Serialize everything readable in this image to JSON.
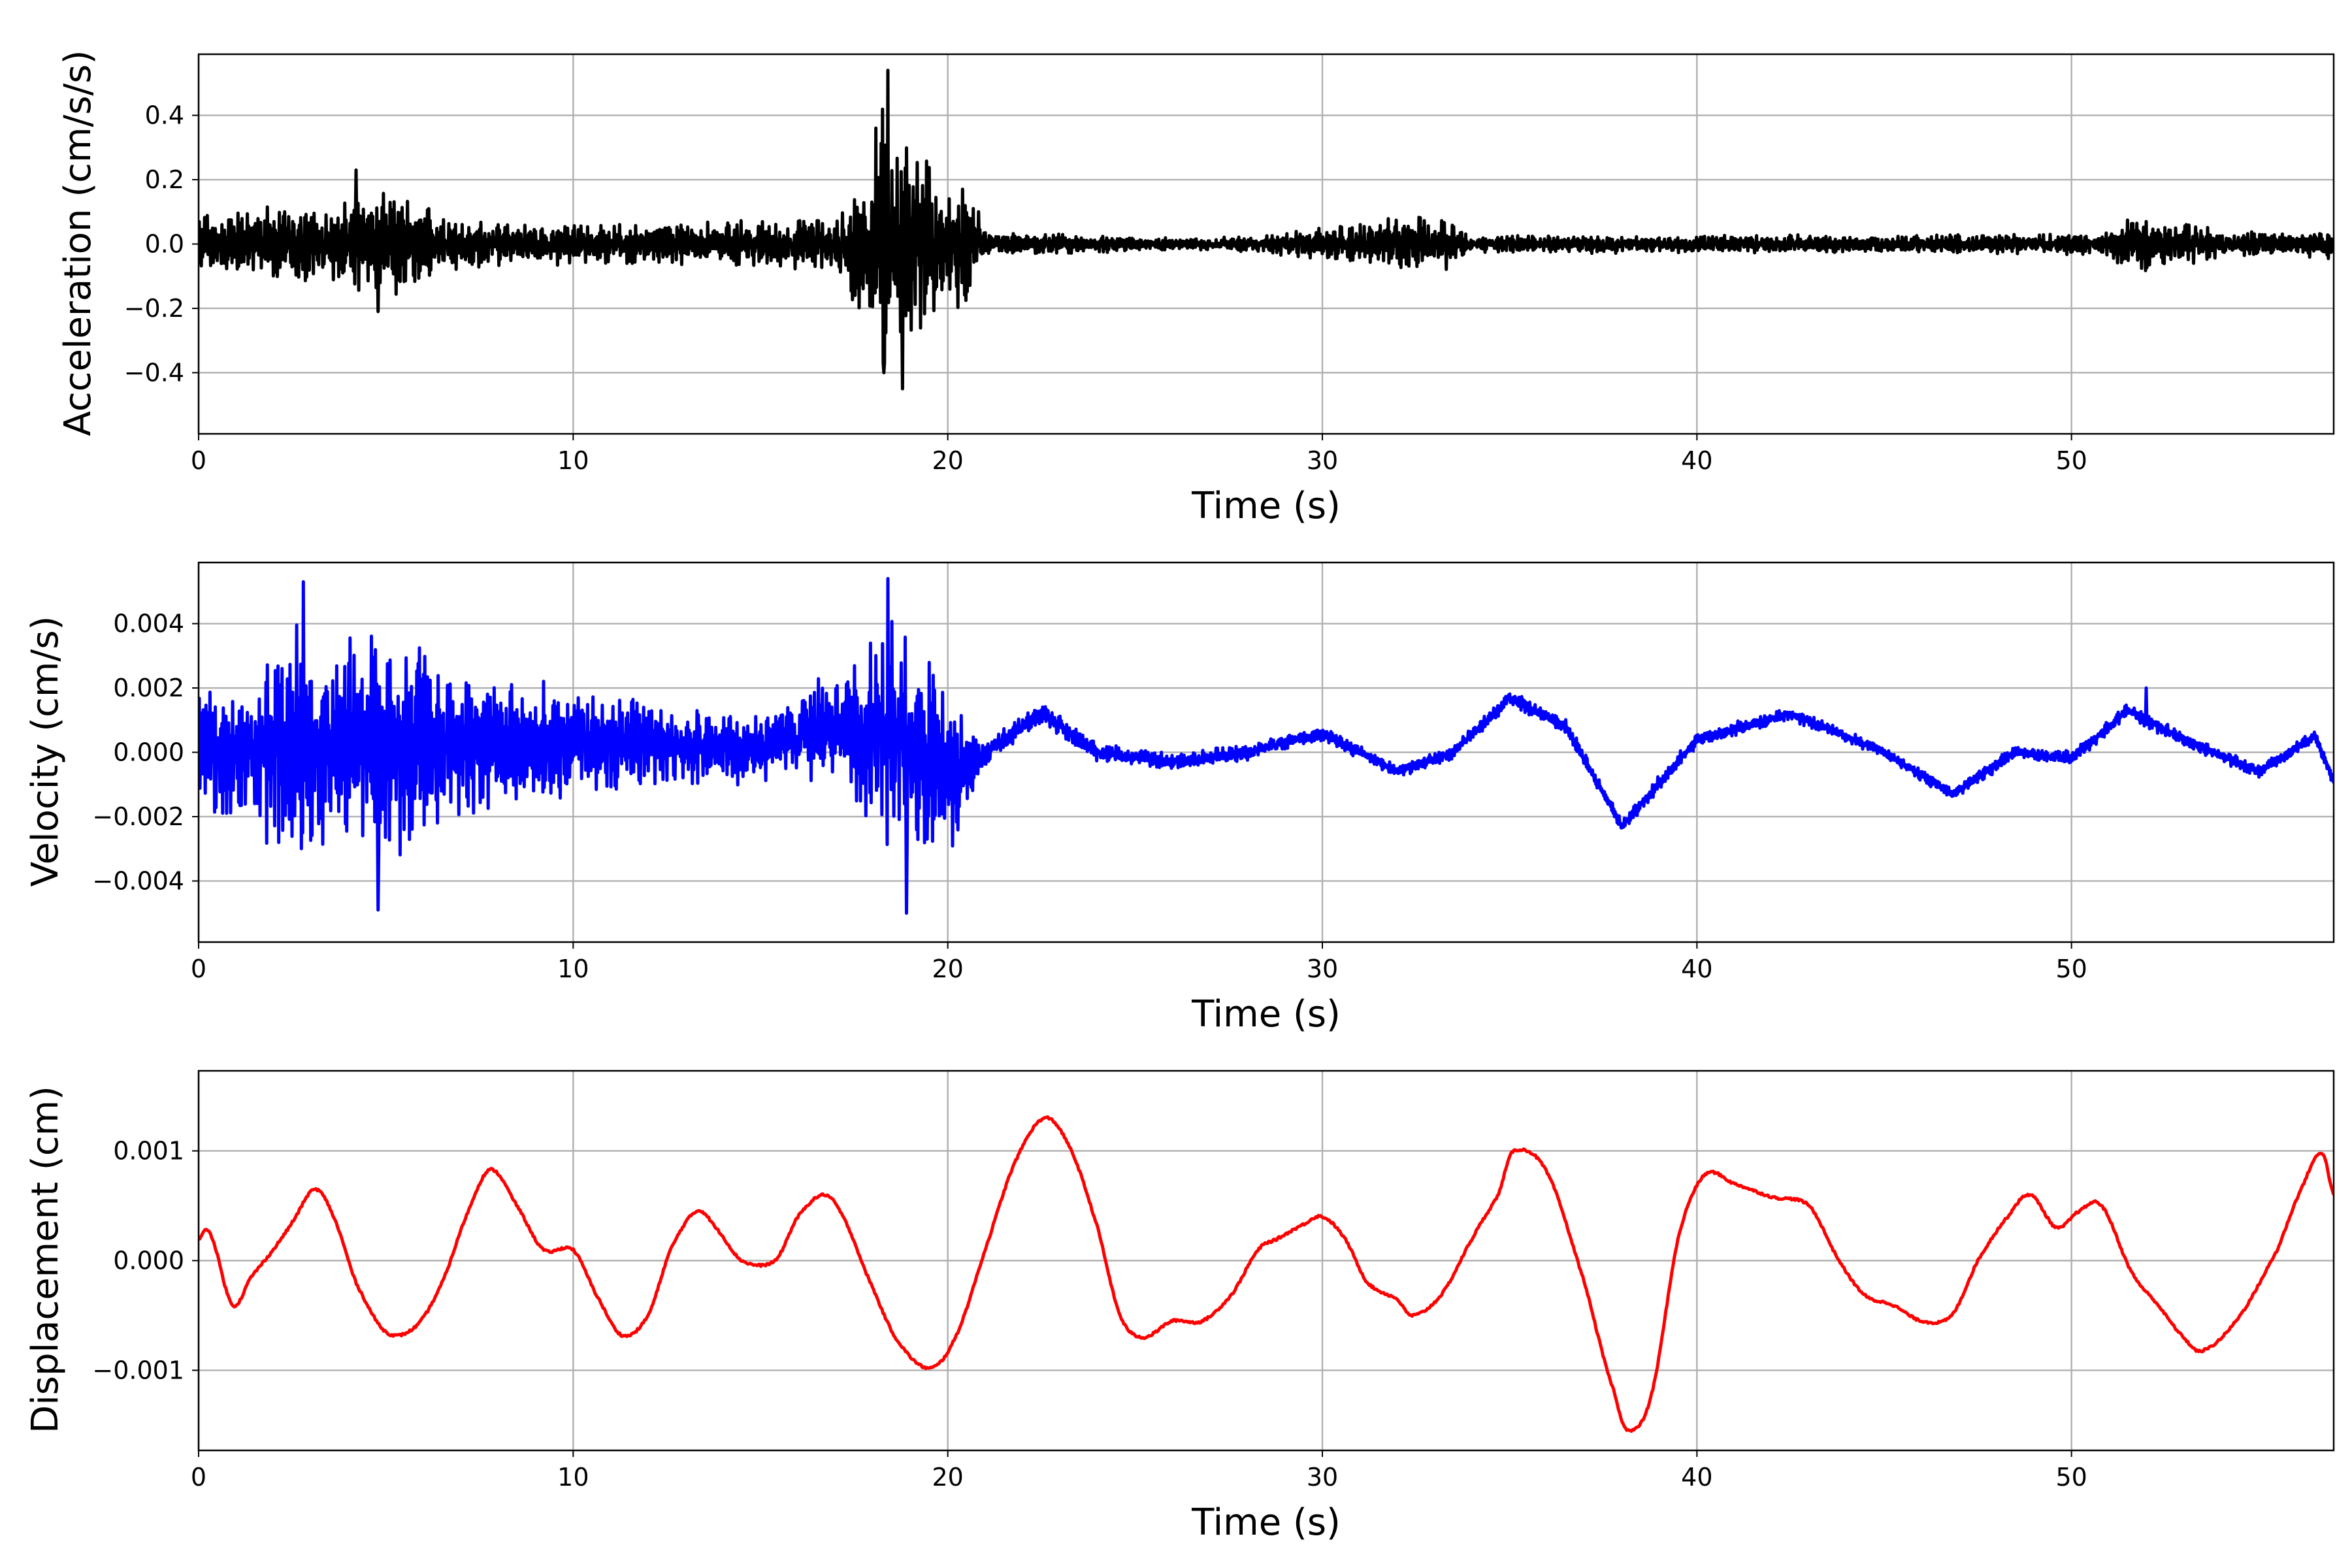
{
  "chart_data": [
    {
      "type": "line",
      "xlabel": "Time (s)",
      "ylabel": "Acceleration (cm/s/s)",
      "xlim": [
        0,
        57
      ],
      "ylim": [
        -0.59,
        0.59
      ],
      "xticks": [
        0,
        10,
        20,
        30,
        40,
        50
      ],
      "xtick_labels": [
        "0",
        "10",
        "20",
        "30",
        "40",
        "50"
      ],
      "yticks": [
        -0.4,
        -0.2,
        0.0,
        0.2,
        0.4
      ],
      "ytick_labels": [
        "−0.4",
        "−0.2",
        "0.0",
        "0.2",
        "0.4"
      ],
      "grid": true,
      "series": [
        {
          "color": "#000000",
          "envelope": {
            "t": [
              0,
              2,
              4,
              4.3,
              5,
              8,
              12,
              15,
              17,
              17.9,
              18.3,
              18.6,
              19,
              20,
              20.5,
              21,
              25,
              27,
              29,
              31,
              32.5,
              33.5,
              34,
              40,
              45,
              51,
              51.5,
              53.5,
              54,
              57
            ],
            "amp": [
              0.1,
              0.13,
              0.14,
              0.2,
              0.17,
              0.07,
              0.07,
              0.08,
              0.09,
              0.32,
              0.52,
              0.33,
              0.36,
              0.2,
              0.22,
              0.04,
              0.025,
              0.02,
              0.04,
              0.07,
              0.1,
              0.08,
              0.03,
              0.03,
              0.03,
              0.04,
              0.09,
              0.07,
              0.04,
              0.05
            ]
          },
          "extremes": [
            {
              "t": 18.4,
              "v": 0.54
            },
            {
              "t": 18.8,
              "v": -0.45
            },
            {
              "t": 18.3,
              "v": -0.4
            },
            {
              "t": 4.2,
              "v": 0.23
            },
            {
              "t": 4.8,
              "v": -0.21
            }
          ]
        }
      ]
    },
    {
      "type": "line",
      "xlabel": "Time (s)",
      "ylabel": "Velocity (cm/s)",
      "xlim": [
        0,
        57
      ],
      "ylim": [
        -0.0059,
        0.0059
      ],
      "xticks": [
        0,
        10,
        20,
        30,
        40,
        50
      ],
      "xtick_labels": [
        "0",
        "10",
        "20",
        "30",
        "40",
        "50"
      ],
      "yticks": [
        -0.004,
        -0.002,
        0.0,
        0.002,
        0.004
      ],
      "ytick_labels": [
        "−0.004",
        "−0.002",
        "0.000",
        "0.002",
        "0.004"
      ],
      "grid": true,
      "series": [
        {
          "color": "#0000ff",
          "trend": {
            "t": [
              0,
              3,
              6,
              9,
              12,
              15,
              17,
              18.5,
              20,
              21,
              22.5,
              24,
              26,
              28,
              30,
              32,
              33.5,
              35,
              36.5,
              38,
              40,
              42.5,
              45,
              46.8,
              48.5,
              50,
              51.5,
              53,
              55,
              56.5,
              57
            ],
            "v": [
              0,
              0.0002,
              0.0003,
              0.0002,
              0.0003,
              0.0001,
              0.0008,
              0.0005,
              -0.0007,
              0.0,
              0.0012,
              0.0,
              -0.0003,
              0.0,
              0.0006,
              -0.0006,
              0.0,
              0.0017,
              0.0008,
              -0.0023,
              0.0004,
              0.0012,
              0.0,
              -0.0013,
              0.0,
              -0.0002,
              0.0013,
              0.0004,
              -0.0006,
              0.0005,
              -0.0009
            ]
          },
          "envelope": {
            "t": [
              0,
              2.5,
              5,
              7.5,
              10,
              13,
              16,
              17.5,
              18.5,
              19,
              20,
              20.5,
              21,
              25,
              30,
              35,
              40,
              45,
              50,
              57
            ],
            "amp": [
              0.002,
              0.004,
              0.004,
              0.0025,
              0.0018,
              0.0013,
              0.0012,
              0.0025,
              0.0045,
              0.004,
              0.0028,
              0.0018,
              0.0004,
              0.0003,
              0.00025,
              0.00025,
              0.00025,
              0.0002,
              0.00025,
              0.0002
            ]
          },
          "extremes": [
            {
              "t": 18.4,
              "v": 0.0054
            },
            {
              "t": 18.4,
              "v": -0.0052
            },
            {
              "t": 2.8,
              "v": 0.0053
            },
            {
              "t": 4.8,
              "v": -0.0049
            },
            {
              "t": 18.9,
              "v": -0.005
            },
            {
              "t": 52,
              "v": 0.002
            }
          ]
        }
      ]
    },
    {
      "type": "line",
      "xlabel": "Time (s)",
      "ylabel": "Displacement (cm)",
      "xlim": [
        0,
        57
      ],
      "ylim": [
        -0.00173,
        0.00173
      ],
      "xticks": [
        0,
        10,
        20,
        30,
        40,
        50
      ],
      "xtick_labels": [
        "0",
        "10",
        "20",
        "30",
        "40",
        "50"
      ],
      "yticks": [
        -0.001,
        0.0,
        0.001
      ],
      "ytick_labels": [
        "−0.001",
        "0.000",
        "0.001"
      ],
      "grid": true,
      "series": [
        {
          "color": "#ff0000",
          "x": [
            0,
            0.3,
            0.9,
            1.4,
            2.0,
            2.5,
            3.1,
            3.6,
            4.2,
            5.0,
            5.8,
            6.5,
            7.2,
            7.8,
            8.5,
            9.2,
            10.0,
            10.6,
            11.3,
            12.0,
            12.6,
            13.3,
            13.8,
            14.5,
            15.4,
            16.0,
            16.7,
            17.2,
            17.8,
            18.6,
            19.5,
            20.2,
            21.0,
            21.8,
            22.6,
            23.3,
            24.0,
            24.6,
            25.2,
            26.0,
            26.8,
            27.6,
            28.3,
            28.8,
            29.5,
            30.0,
            30.6,
            31.2,
            32.0,
            32.4,
            33.2,
            34.0,
            34.7,
            35.1,
            36.0,
            37.0,
            37.8,
            38.2,
            38.8,
            39.5,
            40.2,
            41.0,
            42.0,
            43.0,
            43.8,
            44.5,
            45.2,
            46.0,
            46.8,
            47.5,
            48.3,
            48.9,
            49.6,
            50.2,
            50.8,
            51.6,
            52.3,
            53.0,
            53.5,
            54.5,
            55.5,
            56.2,
            56.7,
            57.0
          ],
          "y": [
            0.0002,
            0.00025,
            -0.0004,
            -0.00015,
            0.0001,
            0.00035,
            0.00065,
            0.0004,
            -0.0002,
            -0.00065,
            -0.0006,
            -0.0002,
            0.00045,
            0.00083,
            0.0005,
            0.0001,
            0.0001,
            -0.0003,
            -0.00068,
            -0.0005,
            0.0001,
            0.00045,
            0.0003,
            0.0,
            0.0,
            0.0004,
            0.0006,
            0.0004,
            -0.0001,
            -0.0007,
            -0.00098,
            -0.0007,
            0.0001,
            0.0009,
            0.0013,
            0.001,
            0.0003,
            -0.0005,
            -0.0007,
            -0.00055,
            -0.00055,
            -0.0003,
            0.0001,
            0.0002,
            0.00033,
            0.0004,
            0.0002,
            -0.0002,
            -0.00035,
            -0.0005,
            -0.0003,
            0.0002,
            0.0006,
            0.001,
            0.0008,
            -0.0002,
            -0.0012,
            -0.00155,
            -0.0012,
            0.0002,
            0.00078,
            0.0007,
            0.00058,
            0.0005,
            0.0,
            -0.00032,
            -0.0004,
            -0.00055,
            -0.0005,
            0.0,
            0.0004,
            0.0006,
            0.0003,
            0.00045,
            0.0005,
            -0.0001,
            -0.0004,
            -0.0007,
            -0.00082,
            -0.0005,
            0.0001,
            0.0007,
            0.00098,
            0.0006
          ]
        }
      ]
    }
  ]
}
